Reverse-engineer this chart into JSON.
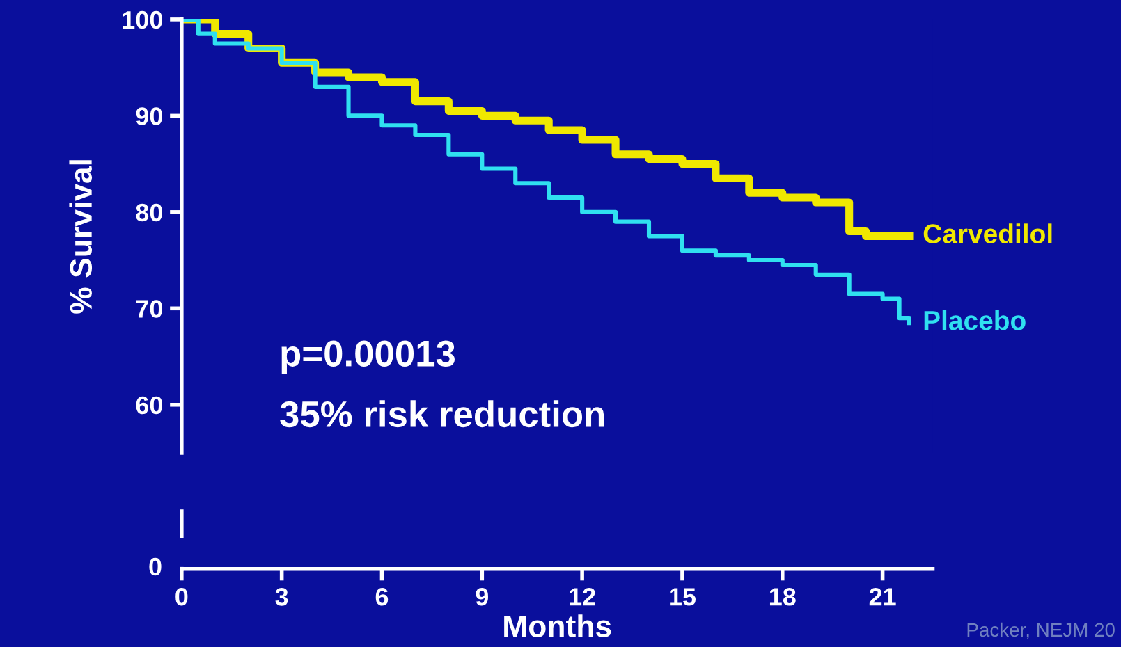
{
  "chart_data": {
    "type": "step",
    "xlabel": "Months",
    "ylabel": "% Survival",
    "xlim": [
      0,
      22.5
    ],
    "xticks": [
      0,
      3,
      6,
      9,
      12,
      15,
      18,
      21
    ],
    "ylim": [
      55,
      100
    ],
    "yticks": [
      60,
      70,
      80,
      90,
      100
    ],
    "grid": false,
    "series": [
      {
        "name": "Carvedilol",
        "color": "#f0e800",
        "x": [
          0,
          1,
          2,
          3,
          4,
          5,
          6,
          7,
          8,
          9,
          10,
          11,
          12,
          13,
          14,
          15,
          16,
          17,
          18,
          19,
          20,
          20.5,
          21.8
        ],
        "values": [
          100,
          98.5,
          97,
          95.5,
          94.5,
          94,
          93.5,
          91.5,
          90.5,
          90,
          89.5,
          88.5,
          87.5,
          86,
          85.5,
          85,
          83.5,
          82,
          81.5,
          81,
          78,
          77.5,
          77.5
        ]
      },
      {
        "name": "Placebo",
        "color": "#30e0f0",
        "x": [
          0,
          0.5,
          1,
          2,
          3,
          4,
          5,
          6,
          7,
          8,
          9,
          10,
          11,
          12,
          13,
          14,
          15,
          16,
          17,
          18,
          19,
          20,
          21,
          21.5,
          21.8
        ],
        "values": [
          100,
          98.5,
          97.5,
          97,
          95.5,
          93,
          90,
          89,
          88,
          86,
          84.5,
          83,
          81.5,
          80,
          79,
          77.5,
          76,
          75.5,
          75,
          74.5,
          73.5,
          71.5,
          71,
          69,
          68.5
        ]
      }
    ],
    "annotations": [
      "p=0.00013",
      "35% risk reduction",
      "Packer, NEJM 20",
      "0"
    ]
  }
}
